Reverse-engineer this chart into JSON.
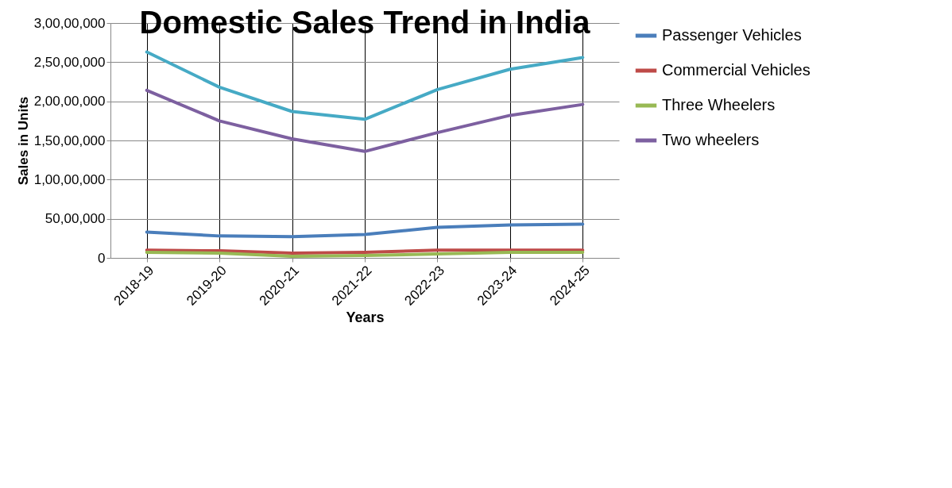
{
  "chart_data": {
    "type": "line",
    "title": "Domestic Sales Trend in India",
    "xlabel": "Years",
    "ylabel": "Sales in Units",
    "categories": [
      "2018-19",
      "2019-20",
      "2020-21",
      "2021-22",
      "2022-23",
      "2023-24",
      "2024-25"
    ],
    "series": [
      {
        "name": "Passenger Vehicles",
        "color": "#4a7ebb",
        "values": [
          3300000,
          2800000,
          2700000,
          3000000,
          3900000,
          4200000,
          4300000
        ]
      },
      {
        "name": "Commercial Vehicles",
        "color": "#be4b48",
        "values": [
          1000000,
          900000,
          600000,
          700000,
          1000000,
          1000000,
          1000000
        ]
      },
      {
        "name": "Three Wheelers",
        "color": "#98b954",
        "values": [
          700000,
          600000,
          200000,
          300000,
          500000,
          700000,
          700000
        ]
      },
      {
        "name": " Two wheelers",
        "color": "#7d60a0",
        "values": [
          21400000,
          17500000,
          15200000,
          13600000,
          16000000,
          18200000,
          19600000
        ]
      },
      {
        "color": "#46aac5",
        "values": [
          26300000,
          21800000,
          18700000,
          17700000,
          21500000,
          24100000,
          25600000
        ]
      }
    ],
    "ylim": [
      0,
      30000000
    ],
    "yticks": [
      0,
      {
        "value": 5000000,
        "label": "50,00,000"
      },
      {
        "value": 10000000,
        "label": "1,00,00,000"
      },
      {
        "value": 15000000,
        "label": "1,50,00,000"
      },
      {
        "value": 20000000,
        "label": "2,00,00,000"
      },
      {
        "value": 25000000,
        "label": "2,50,00,000"
      },
      {
        "value": 30000000,
        "label": "3,00,00,000"
      }
    ],
    "grid": true,
    "legend": "right",
    "marker": "none",
    "line_style": "solid"
  }
}
